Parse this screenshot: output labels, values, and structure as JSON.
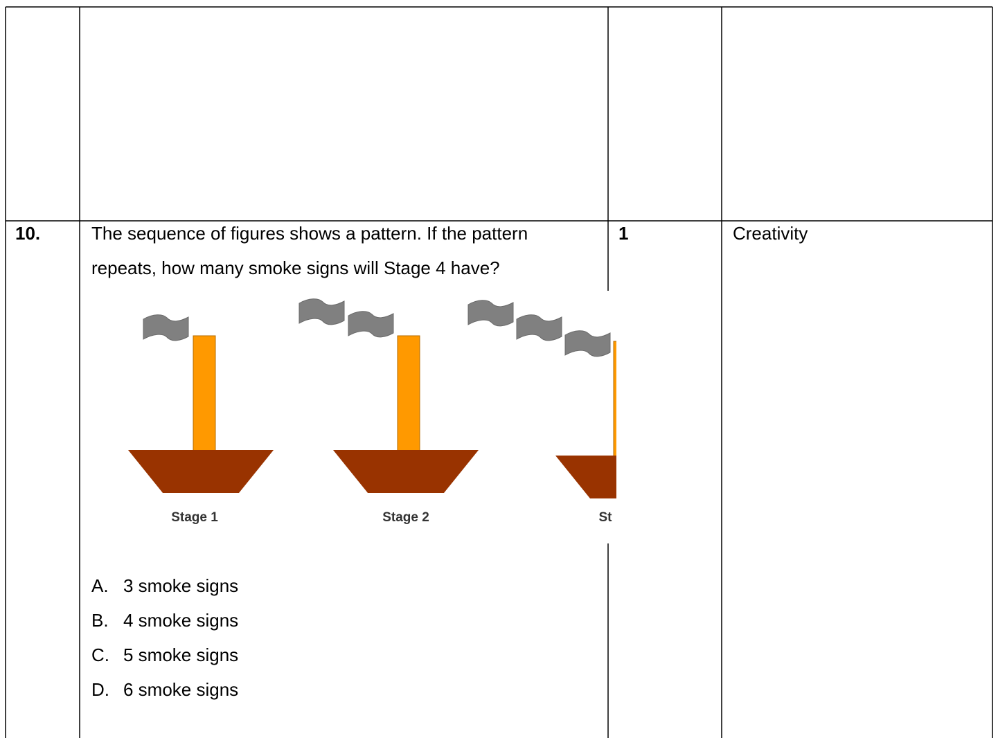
{
  "question": {
    "number": "10.",
    "text": [
      "The sequence of figures shows a pattern. If the pattern",
      "repeats, how many smoke signs will Stage 4 have?"
    ],
    "stage_labels": [
      "Stage 1",
      "Stage 2",
      "St"
    ],
    "options": [
      {
        "letter": "A.",
        "text": "3 smoke signs"
      },
      {
        "letter": "B.",
        "text": "4 smoke signs"
      },
      {
        "letter": "C.",
        "text": "5 smoke signs"
      },
      {
        "letter": "D.",
        "text": "6 smoke signs"
      }
    ]
  },
  "marks": "1",
  "skill": "Creativity"
}
